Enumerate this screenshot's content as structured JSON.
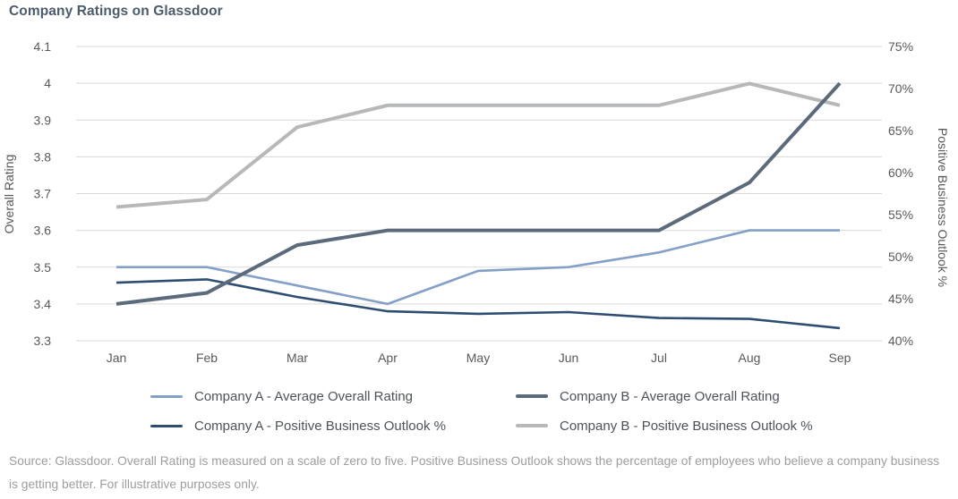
{
  "title": "Company Ratings on Glassdoor",
  "chart_data": {
    "type": "line",
    "title": "Company Ratings on Glassdoor",
    "categories": [
      "Jan",
      "Feb",
      "Mar",
      "Apr",
      "May",
      "Jun",
      "Jul",
      "Aug",
      "Sep"
    ],
    "left_axis": {
      "label": "Overall Rating",
      "min": 3.3,
      "max": 4.1,
      "tick_step": 0.1,
      "ticks": [
        "4.1",
        "4",
        "3.9",
        "3.8",
        "3.7",
        "3.6",
        "3.5",
        "3.4",
        "3.3"
      ]
    },
    "right_axis": {
      "label": "Positive Business Outlook %",
      "min": 40,
      "max": 75,
      "tick_step": 5,
      "ticks": [
        "75%",
        "70%",
        "65%",
        "60%",
        "55%",
        "50%",
        "45%",
        "40%"
      ]
    },
    "grid": true,
    "gridline_color": "#d9d9d9",
    "legend_position": "bottom",
    "series": [
      {
        "name": "Company A - Average Overall Rating",
        "axis": "left",
        "color": "#84a0c6",
        "stroke_width": 2.6,
        "values": [
          3.5,
          3.5,
          3.45,
          3.4,
          3.49,
          3.5,
          3.54,
          3.6,
          3.6
        ]
      },
      {
        "name": "Company B - Average Overall Rating",
        "axis": "left",
        "color": "#5c6b7c",
        "stroke_width": 4,
        "values": [
          3.4,
          3.43,
          3.56,
          3.6,
          3.6,
          3.6,
          3.6,
          3.73,
          4.0
        ]
      },
      {
        "name": "Company A - Positive Business Outlook %",
        "axis": "right",
        "color": "#2e4d72",
        "stroke_width": 2.6,
        "values": [
          46.9,
          47.3,
          45.2,
          43.5,
          43.2,
          43.4,
          42.7,
          42.6,
          41.5
        ]
      },
      {
        "name": "Company B - Positive Business Outlook %",
        "axis": "right",
        "color": "#b6b8ba",
        "stroke_width": 4,
        "values": [
          55.9,
          56.8,
          65.4,
          68,
          68,
          68,
          68,
          70.6,
          68
        ]
      }
    ]
  },
  "footer": {
    "line1": "Source: Glassdoor. Overall Rating is measured on a scale of zero to five. Positive Business Outlook shows the percentage of employees who believe a company business",
    "line2": "is getting better. For illustrative purposes only."
  }
}
